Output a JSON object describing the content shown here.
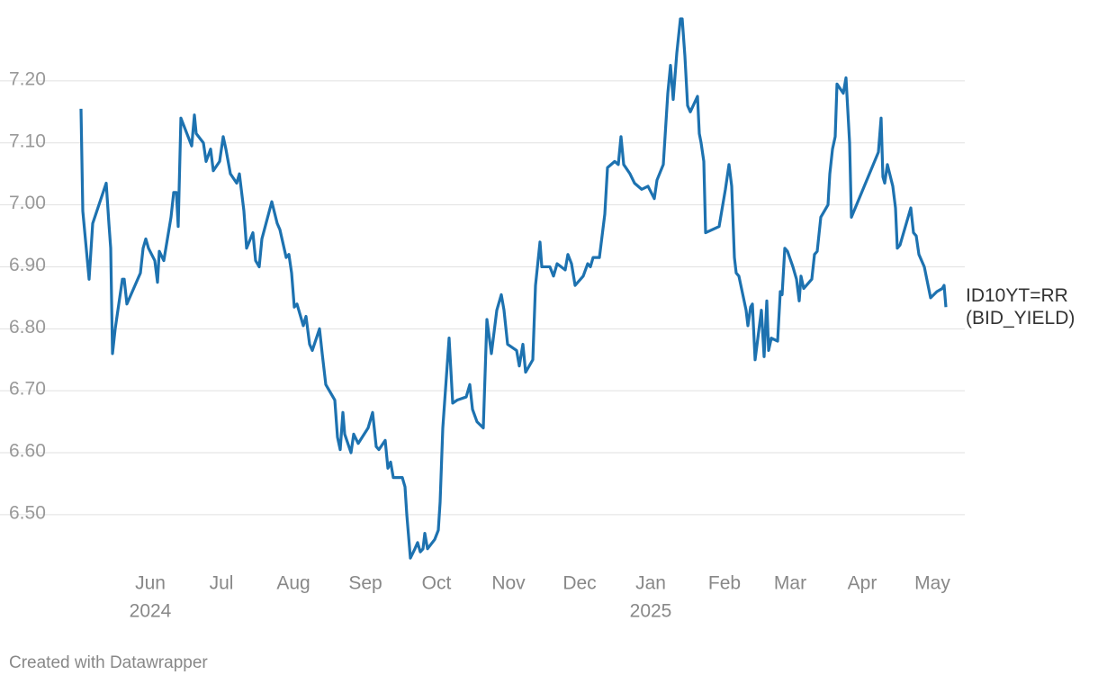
{
  "chart_data": {
    "type": "line",
    "x": [
      0,
      2,
      9,
      13,
      28,
      31,
      33,
      35,
      38,
      46,
      48,
      51,
      66,
      69,
      72,
      75,
      82,
      85,
      87,
      92,
      100,
      103,
      106,
      108,
      111,
      123,
      126,
      128,
      136,
      139,
      144,
      147,
      154,
      158,
      161,
      166,
      173,
      176,
      181,
      184,
      191,
      194,
      198,
      201,
      212,
      218,
      221,
      228,
      231,
      234,
      237,
      240,
      247,
      250,
      254,
      257,
      265,
      268,
      272,
      276,
      282,
      285,
      288,
      291,
      293,
      300,
      303,
      308,
      319,
      324,
      328,
      331,
      338,
      341,
      344,
      347,
      357,
      360,
      362,
      366,
      371,
      374,
      377,
      380,
      382,
      385,
      393,
      397,
      399,
      402,
      409,
      413,
      418,
      428,
      432,
      435,
      440,
      447,
      451,
      456,
      462,
      467,
      470,
      474,
      484,
      487,
      491,
      494,
      502,
      505,
      510,
      512,
      521,
      525,
      529,
      538,
      541,
      545,
      549,
      558,
      563,
      566,
      569,
      576,
      579,
      582,
      585,
      593,
      597,
      600,
      603,
      610,
      615,
      623,
      630,
      637,
      640,
      647,
      652,
      655,
      658,
      662,
      666,
      668,
      671,
      674,
      677,
      685,
      687,
      689,
      692,
      694,
      709,
      716,
      720,
      723,
      726,
      728,
      731,
      739,
      741,
      744,
      746,
      749,
      756,
      759,
      762,
      764,
      767,
      774,
      777,
      779,
      782,
      785,
      791,
      795,
      798,
      800,
      803,
      812,
      815,
      818,
      822,
      830,
      832,
      835,
      838,
      840,
      847,
      850,
      854,
      856,
      886,
      889,
      891,
      893,
      896,
      902,
      905,
      907,
      910,
      922,
      925,
      928,
      931,
      937,
      944,
      951,
      957,
      959,
      961
    ],
    "series": [
      {
        "name": "ID10YT=RR (BID_YIELD)",
        "color": "#1d72b0",
        "values": [
          7.155,
          6.99,
          6.88,
          6.97,
          7.035,
          6.97,
          6.93,
          6.76,
          6.8,
          6.88,
          6.88,
          6.84,
          6.89,
          6.93,
          6.945,
          6.93,
          6.91,
          6.875,
          6.925,
          6.91,
          6.98,
          7.02,
          7.02,
          6.965,
          7.14,
          7.095,
          7.145,
          7.115,
          7.1,
          7.07,
          7.09,
          7.055,
          7.07,
          7.11,
          7.09,
          7.05,
          7.035,
          7.05,
          6.99,
          6.93,
          6.955,
          6.91,
          6.9,
          6.945,
          7.005,
          6.97,
          6.96,
          6.915,
          6.92,
          6.89,
          6.835,
          6.84,
          6.805,
          6.82,
          6.775,
          6.765,
          6.8,
          6.76,
          6.71,
          6.7,
          6.685,
          6.625,
          6.605,
          6.665,
          6.63,
          6.6,
          6.63,
          6.615,
          6.64,
          6.665,
          6.61,
          6.605,
          6.62,
          6.575,
          6.585,
          6.56,
          6.56,
          6.545,
          6.5,
          6.43,
          6.445,
          6.455,
          6.44,
          6.445,
          6.47,
          6.445,
          6.46,
          6.475,
          6.52,
          6.64,
          6.785,
          6.68,
          6.685,
          6.69,
          6.71,
          6.67,
          6.65,
          6.64,
          6.815,
          6.76,
          6.83,
          6.855,
          6.83,
          6.775,
          6.765,
          6.74,
          6.775,
          6.73,
          6.75,
          6.87,
          6.94,
          6.9,
          6.9,
          6.885,
          6.905,
          6.895,
          6.92,
          6.905,
          6.87,
          6.885,
          6.905,
          6.9,
          6.915,
          6.915,
          6.95,
          6.985,
          7.06,
          7.07,
          7.065,
          7.11,
          7.065,
          7.05,
          7.035,
          7.025,
          7.03,
          7.01,
          7.04,
          7.065,
          7.18,
          7.225,
          7.17,
          7.245,
          7.3,
          7.3,
          7.24,
          7.16,
          7.15,
          7.175,
          7.115,
          7.1,
          7.07,
          6.955,
          6.965,
          7.025,
          7.065,
          7.03,
          6.915,
          6.89,
          6.885,
          6.83,
          6.805,
          6.835,
          6.84,
          6.75,
          6.83,
          6.755,
          6.845,
          6.765,
          6.785,
          6.78,
          6.86,
          6.855,
          6.93,
          6.925,
          6.9,
          6.88,
          6.845,
          6.885,
          6.865,
          6.88,
          6.92,
          6.925,
          6.98,
          7.0,
          7.05,
          7.09,
          7.11,
          7.195,
          7.18,
          7.205,
          7.1,
          6.98,
          7.085,
          7.14,
          7.045,
          7.035,
          7.065,
          7.03,
          6.995,
          6.93,
          6.935,
          6.995,
          6.955,
          6.95,
          6.92,
          6.9,
          6.85,
          6.86,
          6.865,
          6.87,
          6.835
        ]
      }
    ],
    "xlim": [
      0,
      961
    ],
    "xticks": [
      {
        "value": 77,
        "label": "Jun"
      },
      {
        "value": 156,
        "label": "Jul"
      },
      {
        "value": 236,
        "label": "Aug"
      },
      {
        "value": 316,
        "label": "Sep"
      },
      {
        "value": 395,
        "label": "Oct"
      },
      {
        "value": 475,
        "label": "Nov"
      },
      {
        "value": 554,
        "label": "Dec"
      },
      {
        "value": 633,
        "label": "Jan"
      },
      {
        "value": 715,
        "label": "Feb"
      },
      {
        "value": 788,
        "label": "Mar"
      },
      {
        "value": 868,
        "label": "Apr"
      },
      {
        "value": 946,
        "label": "May"
      }
    ],
    "year_labels": [
      {
        "value": 77,
        "label": "2024"
      },
      {
        "value": 633,
        "label": "2025"
      }
    ],
    "ylim": [
      6.42,
      7.3
    ],
    "yticks": [
      {
        "value": 6.5,
        "label": "6.50"
      },
      {
        "value": 6.6,
        "label": "6.60"
      },
      {
        "value": 6.7,
        "label": "6.70"
      },
      {
        "value": 6.8,
        "label": "6.80"
      },
      {
        "value": 6.9,
        "label": "6.90"
      },
      {
        "value": 7.0,
        "label": "7.00"
      },
      {
        "value": 7.1,
        "label": "7.10"
      },
      {
        "value": 7.2,
        "label": "7.20"
      }
    ],
    "grid": true,
    "footer": "Created with Datawrapper"
  }
}
